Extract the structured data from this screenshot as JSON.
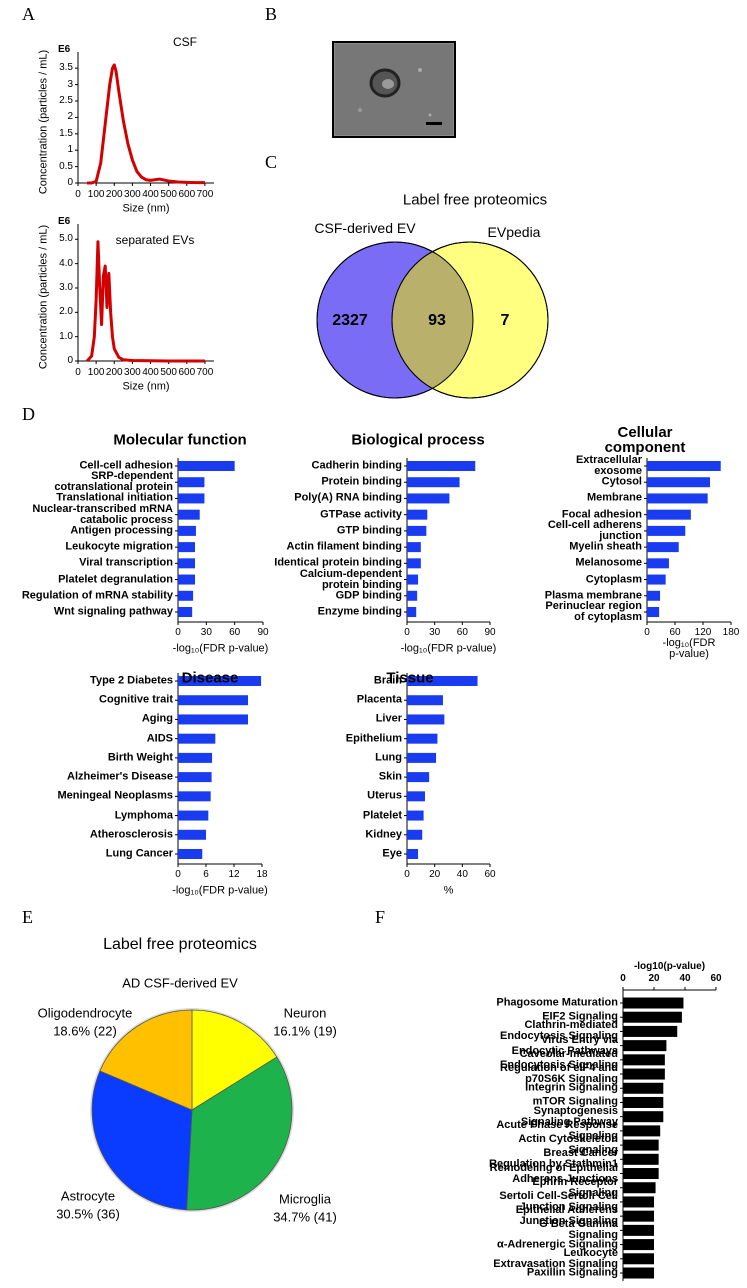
{
  "panel_labels": [
    "A",
    "B",
    "C",
    "D",
    "E",
    "F"
  ],
  "chart_data": [
    {
      "type": "line",
      "title": "CSF",
      "y_unit": "E6",
      "ylabel": "Concentration (particles / mL)",
      "xlabel": "Size (nm)",
      "x": [
        50,
        75,
        100,
        125,
        150,
        175,
        190,
        200,
        210,
        225,
        250,
        275,
        300,
        325,
        350,
        375,
        400,
        450,
        500,
        550,
        600,
        650,
        700
      ],
      "series": [
        {
          "color": "#d40000",
          "values": [
            0,
            0,
            0.05,
            0.6,
            1.8,
            3.0,
            3.5,
            3.6,
            3.4,
            2.8,
            1.9,
            1.2,
            0.7,
            0.35,
            0.18,
            0.1,
            0.08,
            0.12,
            0.06,
            0.03,
            0.02,
            0.01,
            0.01
          ]
        }
      ],
      "xlim": [
        0,
        750
      ],
      "xticks": [
        0,
        100,
        200,
        300,
        400,
        500,
        600,
        700
      ],
      "ylim": [
        0,
        3.75
      ],
      "yticks": [
        0,
        0.5,
        1,
        1.5,
        2,
        2.5,
        3,
        3.5
      ]
    },
    {
      "type": "line",
      "title": "separated EVs",
      "y_unit": "E6",
      "ylabel": "Concentration (particles / mL)",
      "xlabel": "Size (nm)",
      "x": [
        50,
        75,
        90,
        100,
        110,
        120,
        130,
        140,
        150,
        160,
        170,
        180,
        190,
        200,
        225,
        250,
        300,
        400,
        500,
        700
      ],
      "series": [
        {
          "color": "#d40000",
          "values": [
            0,
            0.2,
            1.0,
            2.5,
            4.9,
            3.0,
            1.5,
            3.5,
            3.9,
            2.2,
            3.6,
            2.0,
            1.0,
            0.5,
            0.15,
            0.05,
            0.02,
            0.01,
            0,
            0
          ]
        }
      ],
      "xlim": [
        0,
        750
      ],
      "xticks": [
        0,
        100,
        200,
        300,
        400,
        500,
        600,
        700
      ],
      "ylim": [
        0,
        5.3
      ],
      "yticks": [
        0,
        {
          "value": 1,
          "label": "1.0"
        },
        {
          "value": 2,
          "label": "2.0"
        },
        {
          "value": 3,
          "label": "3.0"
        },
        {
          "value": 4,
          "label": "4.0"
        },
        {
          "value": 5,
          "label": "5.0"
        }
      ]
    },
    {
      "type": "venn",
      "title": "Label free proteomics",
      "sets": [
        "CSF-derived EV",
        "EVpedia"
      ],
      "values": [
        2327,
        93,
        7
      ],
      "colors": [
        "#7b6cf6",
        "#ffff80",
        "#b9b06c"
      ]
    },
    {
      "type": "hbar",
      "title": "Molecular function",
      "xlabel": "-log₁₀(FDR p-value)",
      "color": "#1a3cf0",
      "categories": [
        "Cell-cell adhesion",
        "SRP-dependent\ncotranslational protein",
        "Translational initiation",
        "Nuclear-transcribed mRNA\ncatabolic process",
        "Antigen processing",
        "Leukocyte migration",
        "Viral transcription",
        "Platelet degranulation",
        "Regulation of mRNA stability",
        "Wnt signaling pathway"
      ],
      "values": [
        60,
        28,
        28,
        23,
        19,
        18,
        18,
        18,
        16,
        15
      ],
      "xlim": [
        0,
        90
      ],
      "xticks": [
        0,
        30,
        60,
        90
      ]
    },
    {
      "type": "hbar",
      "title": "Biological process",
      "xlabel": "-log₁₀(FDR p-value)",
      "color": "#1a3cf0",
      "categories": [
        "Cadherin binding",
        "Protein binding",
        "Poly(A) RNA binding",
        "GTPase activity",
        "GTP binding",
        "Actin filament binding",
        "Identical protein binding",
        "Calcium-dependent\nprotein binding",
        "GDP binding",
        "Enzyme binding"
      ],
      "values": [
        74,
        57,
        46,
        22,
        21,
        15,
        15,
        12,
        11,
        10
      ],
      "xlim": [
        0,
        90
      ],
      "xticks": [
        0,
        30,
        60,
        90
      ]
    },
    {
      "type": "hbar",
      "title": "Cellular component",
      "xlabel": "-log₁₀(FDR p-value)",
      "color": "#1a3cf0",
      "categories": [
        "Extracellular exosome",
        "Cytosol",
        "Membrane",
        "Focal adhesion",
        "Cell-cell adherens junction",
        "Myelin sheath",
        "Melanosome",
        "Cytoplasm",
        "Plasma membrane",
        "Perinuclear region\nof cytoplasm"
      ],
      "values": [
        158,
        135,
        130,
        94,
        82,
        68,
        47,
        40,
        28,
        26
      ],
      "xlim": [
        0,
        180
      ],
      "xticks": [
        0,
        60,
        120,
        180
      ]
    },
    {
      "type": "hbar",
      "title": "Disease",
      "xlabel": "-log₁₀(FDR p-value)",
      "color": "#1a3cf0",
      "categories": [
        "Type 2 Diabetes",
        "Cognitive trait",
        "Aging",
        "AIDS",
        "Birth Weight",
        "Alzheimer's Disease",
        "Meningeal Neoplasms",
        "Lymphoma",
        "Atherosclerosis",
        "Lung Cancer"
      ],
      "values": [
        17.8,
        15,
        15,
        8,
        7.3,
        7.2,
        7,
        6.5,
        6,
        5.2
      ],
      "xlim": [
        0,
        18
      ],
      "xticks": [
        0,
        6,
        12,
        18
      ]
    },
    {
      "type": "hbar",
      "title": "Tissue",
      "xlabel": "%",
      "color": "#1a3cf0",
      "categories": [
        "Brain",
        "Placenta",
        "Liver",
        "Epithelium",
        "Lung",
        "Skin",
        "Uterus",
        "Platelet",
        "Kidney",
        "Eye"
      ],
      "values": [
        51,
        26,
        27,
        22,
        21,
        16,
        13,
        12,
        11,
        8
      ],
      "xlim": [
        0,
        60
      ],
      "xticks": [
        0,
        20,
        40,
        60
      ]
    },
    {
      "type": "pie",
      "title": "Label free proteomics",
      "subtitle": "AD CSF-derived EV",
      "categories": [
        "Neuron",
        "Microglia",
        "Astrocyte",
        "Oligodendrocyte"
      ],
      "values": [
        16.1,
        34.7,
        30.5,
        18.6
      ],
      "value_labels": [
        "16.1% (19)",
        "34.7% (41)",
        "30.5% (36)",
        "18.6% (22)"
      ],
      "colors": [
        "#ffff00",
        "#1db24b",
        "#0a3cff",
        "#ffc000"
      ]
    },
    {
      "type": "hbar",
      "axis_position": "top",
      "xlabel": "-log10(p-value)",
      "color": "#000000",
      "categories": [
        "Phagosome Maturation",
        "EIF2 Signaling",
        "Clathrin-mediated Endocytosis Signaling",
        "Virus Entry via Endocytic Pathways",
        "Caveolar-mediated Endocytosis Signaling",
        "Regulation of eIF4 and p70S6K Signaling",
        "Integrin Signaling",
        "mTOR Signaling",
        "Synaptogenesis Signaling Pathway",
        "Acute Phase Response Signaling",
        "Actin Cytoskeleton Signaling",
        "Breast Cancer Regulation by Stathmin1",
        "Remodeling of Epithelial Adherens Junctions",
        "Ephrin Receptor Signaling",
        "Sertoli Cell-Sertoli Cell Junction Signaling",
        "Epithelial Adherens Junction Signaling",
        "G Beta Gamma Signaling",
        "α-Adrenergic Signaling",
        "Leukocyte Extravasation Signaling",
        "Paxillin Signaling"
      ],
      "values": [
        39,
        38,
        35,
        28,
        27,
        27,
        26,
        26,
        26,
        24,
        23,
        23,
        23,
        21,
        20,
        20,
        20,
        20,
        20,
        20
      ],
      "xlim": [
        0,
        60
      ],
      "xticks": [
        0,
        20,
        40,
        60
      ]
    }
  ]
}
